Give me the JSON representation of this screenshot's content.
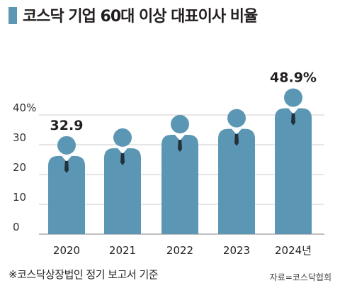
{
  "title": "코스닥 기업 60대 이상 대표이사 비율",
  "footnote": "※코스닥상장법인 정기 보고서 기준",
  "source": "자료=코스닥협회",
  "colors": {
    "figure": "#5b97b4",
    "title_bar": "#5b97b4",
    "grid": "#cccccc"
  },
  "chart_data": {
    "type": "bar",
    "categories": [
      "2020",
      "2021",
      "2022",
      "2023",
      "2024년"
    ],
    "values": [
      32.9,
      35.5,
      40.0,
      42.0,
      48.9
    ],
    "data_labels": [
      "32.9",
      "",
      "",
      "",
      "48.9%"
    ],
    "y_ticks": [
      "0",
      "10",
      "20",
      "30",
      "40%"
    ],
    "ylim": [
      0,
      50
    ],
    "grid": true
  }
}
